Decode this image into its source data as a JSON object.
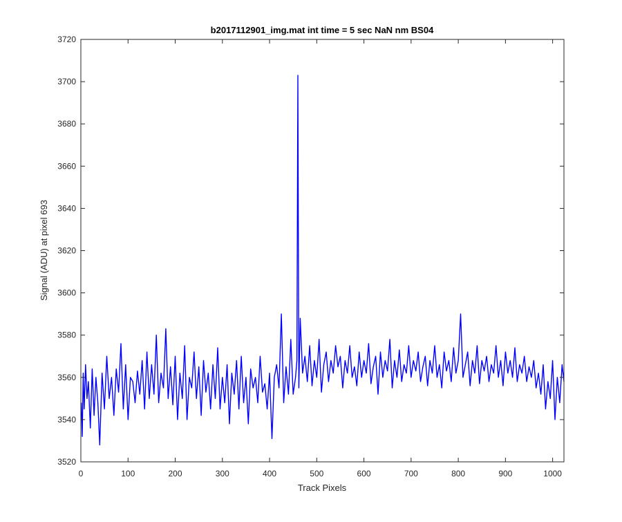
{
  "chart_data": {
    "type": "line",
    "title": "b2017112901_img.mat int time = 5 sec  NaN nm BS04",
    "xlabel": "Track Pixels",
    "ylabel": "Signal (ADU) at pixel 693",
    "xlim": [
      0,
      1024
    ],
    "ylim": [
      3520,
      3720
    ],
    "xticks": [
      "0",
      "100",
      "200",
      "300",
      "400",
      "500",
      "600",
      "700",
      "800",
      "900",
      "1000"
    ],
    "yticks": [
      "3520",
      "3540",
      "3560",
      "3580",
      "3600",
      "3620",
      "3640",
      "3660",
      "3680",
      "3700",
      "3720"
    ],
    "grid": false,
    "series": [
      {
        "color": "#0000ff",
        "x": [
          1,
          3,
          5,
          7,
          10,
          13,
          16,
          20,
          24,
          28,
          32,
          36,
          40,
          45,
          50,
          55,
          60,
          65,
          70,
          75,
          80,
          85,
          90,
          95,
          100,
          105,
          110,
          115,
          120,
          125,
          130,
          135,
          140,
          145,
          150,
          155,
          160,
          165,
          170,
          175,
          180,
          185,
          190,
          195,
          200,
          205,
          210,
          215,
          220,
          225,
          230,
          235,
          240,
          245,
          250,
          255,
          260,
          265,
          270,
          275,
          280,
          285,
          290,
          295,
          300,
          305,
          310,
          315,
          320,
          325,
          330,
          335,
          340,
          345,
          350,
          355,
          360,
          365,
          370,
          375,
          380,
          385,
          390,
          395,
          400,
          405,
          410,
          415,
          420,
          425,
          430,
          435,
          440,
          445,
          450,
          455,
          458,
          460,
          462,
          465,
          470,
          475,
          480,
          485,
          490,
          495,
          500,
          505,
          510,
          515,
          520,
          525,
          530,
          535,
          540,
          545,
          550,
          555,
          560,
          565,
          570,
          575,
          580,
          585,
          590,
          595,
          600,
          605,
          610,
          615,
          620,
          625,
          630,
          635,
          640,
          645,
          650,
          655,
          660,
          665,
          670,
          675,
          680,
          685,
          690,
          695,
          700,
          705,
          710,
          715,
          720,
          725,
          730,
          735,
          740,
          745,
          750,
          755,
          760,
          765,
          770,
          775,
          780,
          785,
          790,
          795,
          800,
          805,
          810,
          815,
          820,
          825,
          830,
          835,
          840,
          845,
          850,
          855,
          860,
          865,
          870,
          875,
          880,
          885,
          890,
          895,
          900,
          905,
          910,
          915,
          920,
          925,
          930,
          935,
          940,
          945,
          950,
          955,
          960,
          965,
          970,
          975,
          980,
          985,
          990,
          995,
          1000,
          1005,
          1010,
          1015,
          1020,
          1024
        ],
        "y": [
          3548,
          3532,
          3562,
          3545,
          3566,
          3550,
          3558,
          3536,
          3564,
          3542,
          3560,
          3548,
          3528,
          3562,
          3545,
          3570,
          3550,
          3560,
          3542,
          3564,
          3553,
          3576,
          3545,
          3566,
          3540,
          3560,
          3558,
          3548,
          3563,
          3552,
          3568,
          3545,
          3572,
          3550,
          3566,
          3552,
          3580,
          3548,
          3562,
          3555,
          3583,
          3550,
          3565,
          3547,
          3570,
          3540,
          3562,
          3550,
          3575,
          3540,
          3560,
          3555,
          3572,
          3550,
          3565,
          3542,
          3568,
          3553,
          3562,
          3545,
          3566,
          3550,
          3574,
          3545,
          3560,
          3548,
          3566,
          3538,
          3562,
          3552,
          3568,
          3545,
          3570,
          3548,
          3560,
          3538,
          3564,
          3555,
          3560,
          3548,
          3570,
          3553,
          3557,
          3545,
          3562,
          3531,
          3560,
          3566,
          3555,
          3590,
          3548,
          3565,
          3552,
          3578,
          3552,
          3560,
          3568,
          3703,
          3555,
          3588,
          3562,
          3570,
          3558,
          3575,
          3556,
          3568,
          3560,
          3578,
          3553,
          3566,
          3572,
          3558,
          3568,
          3562,
          3575,
          3565,
          3570,
          3555,
          3568,
          3562,
          3575,
          3560,
          3565,
          3556,
          3572,
          3560,
          3568,
          3562,
          3576,
          3557,
          3565,
          3570,
          3552,
          3572,
          3560,
          3568,
          3563,
          3578,
          3555,
          3568,
          3560,
          3573,
          3558,
          3566,
          3562,
          3575,
          3560,
          3568,
          3563,
          3572,
          3558,
          3565,
          3570,
          3556,
          3568,
          3562,
          3575,
          3560,
          3566,
          3555,
          3572,
          3563,
          3568,
          3558,
          3574,
          3562,
          3568,
          3590,
          3560,
          3566,
          3572,
          3556,
          3568,
          3562,
          3575,
          3557,
          3568,
          3563,
          3570,
          3558,
          3566,
          3562,
          3575,
          3560,
          3568,
          3556,
          3572,
          3562,
          3568,
          3560,
          3574,
          3558,
          3566,
          3562,
          3570,
          3558,
          3565,
          3560,
          3568,
          3555,
          3562,
          3552,
          3566,
          3545,
          3558,
          3550,
          3568,
          3540,
          3560,
          3548,
          3566,
          3558
        ]
      }
    ]
  }
}
